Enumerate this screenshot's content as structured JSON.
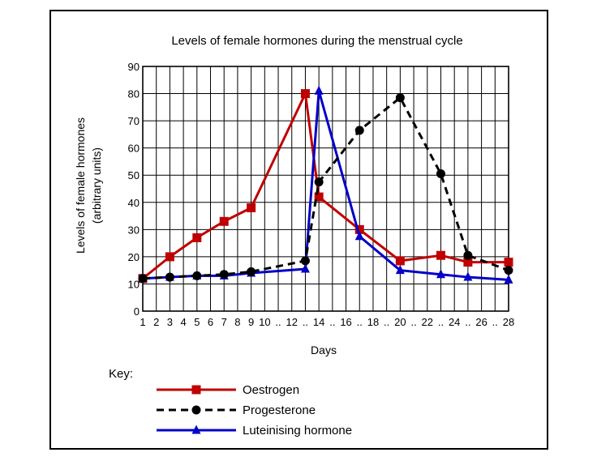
{
  "chart_data": {
    "type": "line",
    "title": "Levels of female hormones during the menstrual cycle",
    "xlabel": "Days",
    "ylabel": [
      "Levels of female hormones",
      "(arbitrary units)"
    ],
    "xlim": [
      1,
      28
    ],
    "ylim": [
      0,
      90
    ],
    "grid": true,
    "x_ticks": [
      "1",
      "2",
      "3",
      "4",
      "5",
      "6",
      "7",
      "8",
      "9",
      "10",
      "..",
      "12",
      "..",
      "14",
      "..",
      "16",
      "..",
      "18",
      "..",
      "20",
      "..",
      "22",
      "..",
      "24",
      "..",
      "26",
      "..",
      "28"
    ],
    "y_ticks": [
      "0",
      "10",
      "20",
      "30",
      "40",
      "50",
      "60",
      "70",
      "80",
      "90"
    ],
    "legend_title": "Key:",
    "legend_position": "bottom",
    "series": [
      {
        "name": "Oestrogen",
        "color": "#c00000",
        "line_style": "solid",
        "marker": "square",
        "x": [
          1,
          3,
          5,
          7,
          9,
          13,
          14,
          17,
          20,
          23,
          25,
          28
        ],
        "y": [
          12,
          20,
          27,
          33,
          38,
          80,
          42,
          30,
          18.5,
          20.5,
          18,
          18
        ]
      },
      {
        "name": "Progesterone",
        "color": "#000000",
        "line_style": "dashed",
        "marker": "circle",
        "x": [
          1,
          3,
          5,
          7,
          9,
          13,
          14,
          17,
          20,
          23,
          25,
          28
        ],
        "y": [
          12,
          12.5,
          13,
          13.5,
          14.5,
          18.5,
          47.5,
          66.5,
          78.5,
          50.5,
          20.5,
          15
        ]
      },
      {
        "name": "Luteinising hormone",
        "color": "#0000c8",
        "line_style": "solid",
        "marker": "triangle",
        "x": [
          1,
          3,
          5,
          7,
          9,
          13,
          14,
          17,
          20,
          23,
          25,
          28
        ],
        "y": [
          12,
          12.5,
          13,
          13,
          14,
          15.5,
          81,
          27.5,
          15,
          13.5,
          12.5,
          11.5
        ]
      }
    ]
  }
}
